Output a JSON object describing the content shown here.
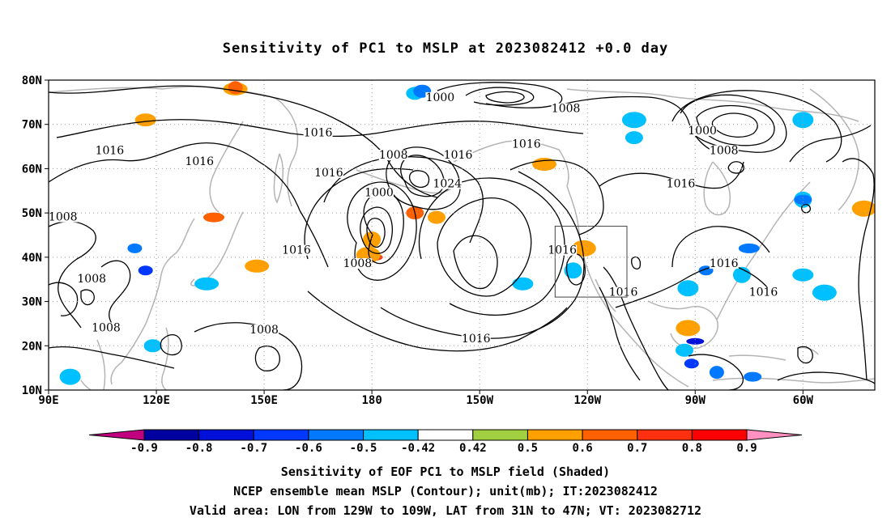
{
  "title": "Sensitivity of PC1 to MSLP at 2023082412 +0.0 day",
  "map": {
    "lat_labels": [
      "80N",
      "70N",
      "60N",
      "50N",
      "40N",
      "30N",
      "20N",
      "10N"
    ],
    "lon_labels": [
      "90E",
      "120E",
      "150E",
      "180",
      "150W",
      "120W",
      "90W",
      "60W"
    ],
    "lon_range": [
      90,
      320
    ],
    "lat_range": [
      10,
      80
    ],
    "valid_box": {
      "lon": [
        231,
        251
      ],
      "lat": [
        31,
        47
      ]
    },
    "contour_labels": [
      {
        "text": "1000",
        "lon": 199,
        "lat": 76
      },
      {
        "text": "1008",
        "lon": 234,
        "lat": 73.5
      },
      {
        "text": "1016",
        "lon": 165,
        "lat": 68
      },
      {
        "text": "1016",
        "lon": 107,
        "lat": 64
      },
      {
        "text": "1016",
        "lon": 132,
        "lat": 61.5
      },
      {
        "text": "1016",
        "lon": 168,
        "lat": 59
      },
      {
        "text": "1008",
        "lon": 186,
        "lat": 63
      },
      {
        "text": "1016",
        "lon": 204,
        "lat": 63
      },
      {
        "text": "1016",
        "lon": 223,
        "lat": 65.5
      },
      {
        "text": "1000",
        "lon": 272,
        "lat": 68.5
      },
      {
        "text": "1008",
        "lon": 278,
        "lat": 64
      },
      {
        "text": "1024",
        "lon": 201,
        "lat": 56.5
      },
      {
        "text": "1016",
        "lon": 266,
        "lat": 56.5
      },
      {
        "text": "1000",
        "lon": 182,
        "lat": 54.5
      },
      {
        "text": "1008",
        "lon": 94,
        "lat": 49
      },
      {
        "text": "1016",
        "lon": 159,
        "lat": 41.5
      },
      {
        "text": "1016",
        "lon": 233,
        "lat": 41.5
      },
      {
        "text": "1008",
        "lon": 176,
        "lat": 38.5
      },
      {
        "text": "1016",
        "lon": 278,
        "lat": 38.5
      },
      {
        "text": "1008",
        "lon": 102,
        "lat": 35
      },
      {
        "text": "1016",
        "lon": 289,
        "lat": 32
      },
      {
        "text": "1016",
        "lon": 250,
        "lat": 32
      },
      {
        "text": "1008",
        "lon": 106,
        "lat": 24
      },
      {
        "text": "1008",
        "lon": 150,
        "lat": 23.5
      },
      {
        "text": "1016",
        "lon": 209,
        "lat": 21.5
      }
    ],
    "shaded_areas": [
      {
        "lon": 192,
        "lat": 77,
        "value": -0.5
      },
      {
        "lon": 194,
        "lat": 77.5,
        "value": -0.6
      },
      {
        "lon": 142,
        "lat": 78,
        "value": 0.5
      },
      {
        "lon": 142,
        "lat": 78.3,
        "value": 0.6
      },
      {
        "lon": 117,
        "lat": 71,
        "value": 0.5
      },
      {
        "lon": 253,
        "lat": 71,
        "value": -0.5
      },
      {
        "lon": 253,
        "lat": 67,
        "value": -0.5
      },
      {
        "lon": 300,
        "lat": 71,
        "value": -0.5
      },
      {
        "lon": 228,
        "lat": 61,
        "value": 0.5
      },
      {
        "lon": 300,
        "lat": 53,
        "value": -0.5
      },
      {
        "lon": 300,
        "lat": 53,
        "value": -0.6
      },
      {
        "lon": 317,
        "lat": 51,
        "value": 0.5
      },
      {
        "lon": 198,
        "lat": 49,
        "value": 0.5
      },
      {
        "lon": 192,
        "lat": 50,
        "value": 0.6
      },
      {
        "lon": 136,
        "lat": 49,
        "value": 0.6
      },
      {
        "lon": 180,
        "lat": 44,
        "value": 0.5
      },
      {
        "lon": 181,
        "lat": 40,
        "value": 0.7
      },
      {
        "lon": 179,
        "lat": 40.5,
        "value": 0.5
      },
      {
        "lon": 114,
        "lat": 42,
        "value": -0.6
      },
      {
        "lon": 117,
        "lat": 37,
        "value": -0.7
      },
      {
        "lon": 134,
        "lat": 34,
        "value": -0.5
      },
      {
        "lon": 236,
        "lat": 37,
        "value": -0.5
      },
      {
        "lon": 222,
        "lat": 34,
        "value": -0.5
      },
      {
        "lon": 239,
        "lat": 42,
        "value": 0.5
      },
      {
        "lon": 273,
        "lat": 37,
        "value": -0.6
      },
      {
        "lon": 268,
        "lat": 33,
        "value": -0.5
      },
      {
        "lon": 285,
        "lat": 42,
        "value": -0.6
      },
      {
        "lon": 283,
        "lat": 36,
        "value": -0.5
      },
      {
        "lon": 300,
        "lat": 36,
        "value": -0.5
      },
      {
        "lon": 306,
        "lat": 32,
        "value": -0.5
      },
      {
        "lon": 267,
        "lat": 19,
        "value": -0.5
      },
      {
        "lon": 269,
        "lat": 16,
        "value": -0.7
      },
      {
        "lon": 270,
        "lat": 21,
        "value": -0.8
      },
      {
        "lon": 276,
        "lat": 14,
        "value": -0.6
      },
      {
        "lon": 286,
        "lat": 13,
        "value": -0.6
      },
      {
        "lon": 268,
        "lat": 24,
        "value": 0.5
      },
      {
        "lon": 119,
        "lat": 20,
        "value": -0.5
      },
      {
        "lon": 96,
        "lat": 13,
        "value": -0.5
      },
      {
        "lon": 148,
        "lat": 38,
        "value": 0.5
      }
    ]
  },
  "colorbar": {
    "levels": [
      "-0.9",
      "-0.8",
      "-0.7",
      "-0.6",
      "-0.5",
      "-0.42",
      "0.42",
      "0.5",
      "0.6",
      "0.7",
      "0.8",
      "0.9"
    ],
    "colors": [
      "#c0007f",
      "#0000a0",
      "#0010d8",
      "#0038ff",
      "#0078ff",
      "#00c0ff",
      "#ffffff",
      "#a0d040",
      "#ffa000",
      "#ff6000",
      "#ff3010",
      "#ff0000",
      "#ff90c0"
    ]
  },
  "footer": {
    "line1": "Sensitivity of EOF PC1 to MSLP field (Shaded)",
    "line2": "NCEP ensemble mean MSLP (Contour); unit(mb); IT:2023082412",
    "line3": "Valid area: LON from 129W to 109W, LAT from 31N to 47N; VT: 2023082712"
  }
}
